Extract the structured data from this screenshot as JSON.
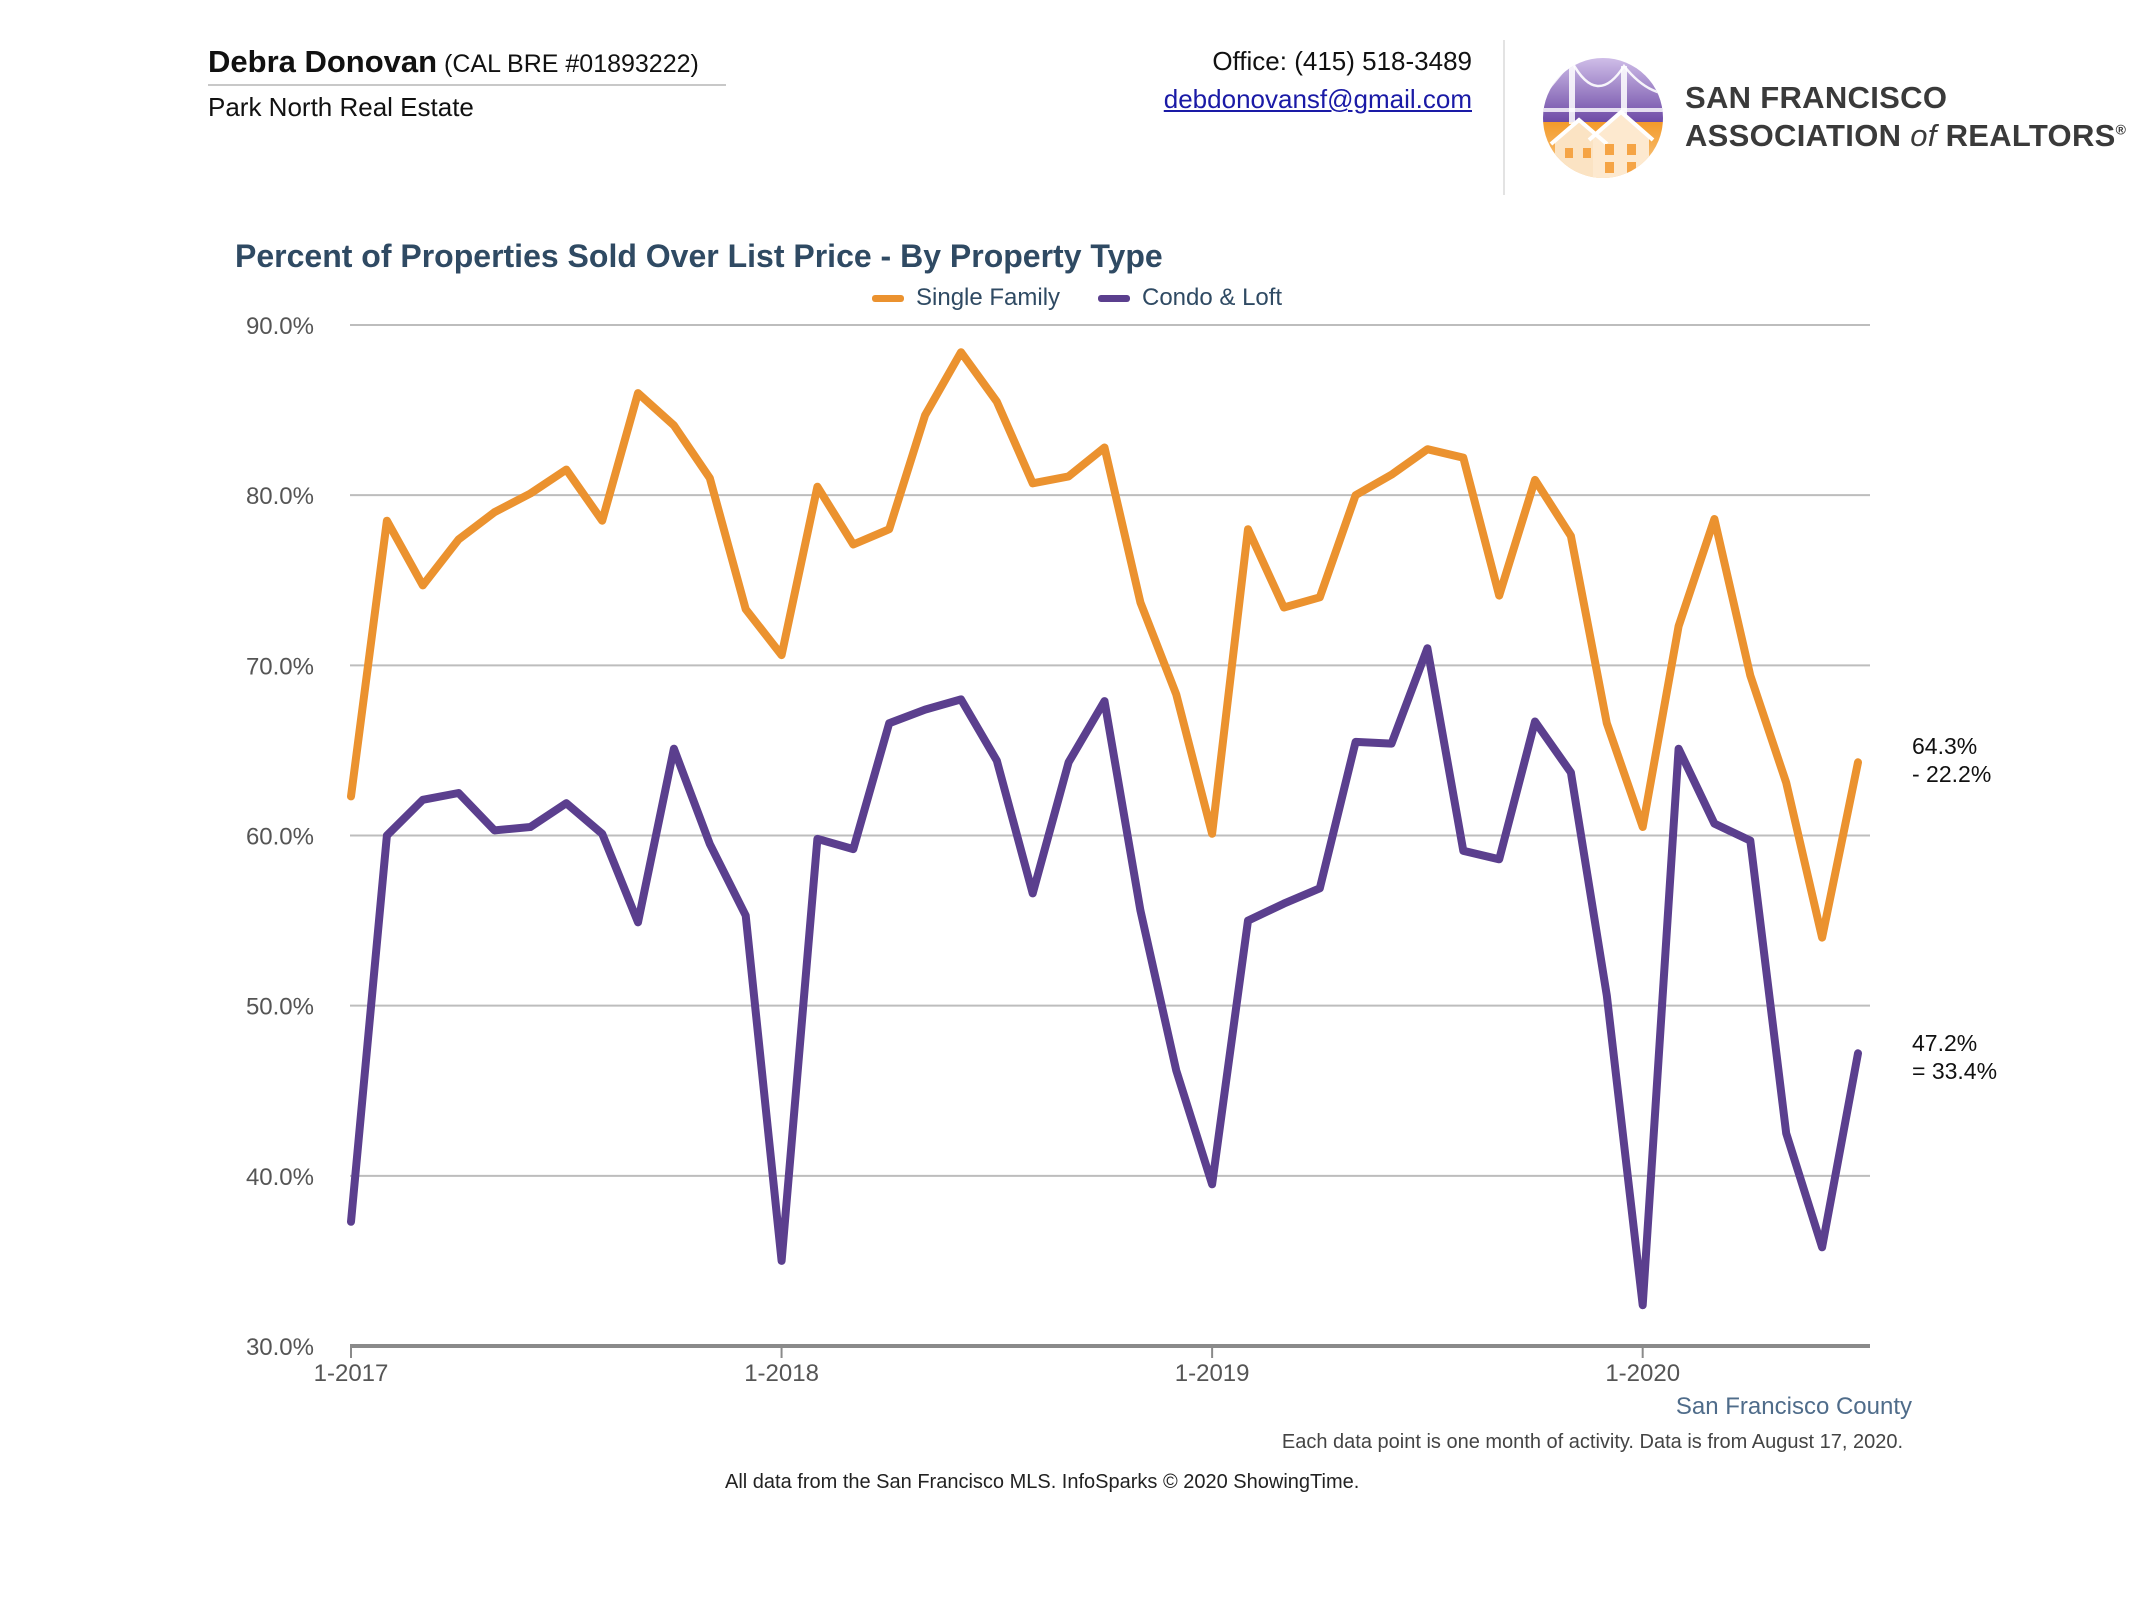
{
  "header": {
    "agent_name": "Debra Donovan",
    "agent_license": " (CAL BRE #01893222)",
    "company": "Park North Real Estate",
    "office_phone": "Office: (415) 518-3489",
    "email": "debdonovansf@gmail.com"
  },
  "logo": {
    "line1": "SAN FRANCISCO",
    "line2_prefix": "ASSOCIATION ",
    "line2_of": "of",
    "line2_suffix": " REALTORS",
    "registered_mark": "®",
    "icon": "golden-gate-house-logo"
  },
  "colors": {
    "single_family": "#EB922F",
    "condo_loft": "#5B3F8E",
    "title": "#2F4A63",
    "grid": "#BDBDBD",
    "axis": "#8A8A8A"
  },
  "chart_data": {
    "type": "line",
    "title": "Percent of Properties Sold Over List Price - By Property Type",
    "xlabel": "",
    "ylabel": "",
    "x_start": "2017-01",
    "x_end": "2020-07",
    "x_ticks": [
      "1-2017",
      "1-2018",
      "1-2019",
      "1-2020"
    ],
    "y_ticks": [
      "30.0%",
      "40.0%",
      "50.0%",
      "60.0%",
      "70.0%",
      "80.0%",
      "90.0%"
    ],
    "ylim": [
      30,
      90
    ],
    "grid": true,
    "legend_position": "top-center",
    "series": [
      {
        "name": "Single Family",
        "color": "#EB922F",
        "end_label": [
          "64.3%",
          "- 22.2%"
        ],
        "values": [
          62.3,
          78.5,
          74.7,
          77.4,
          79.0,
          80.1,
          81.5,
          78.5,
          86.0,
          84.1,
          81.0,
          73.3,
          70.6,
          80.5,
          77.1,
          78.0,
          84.7,
          88.4,
          85.5,
          80.7,
          81.1,
          82.8,
          73.7,
          68.3,
          60.1,
          78.0,
          73.4,
          74.0,
          80.0,
          81.2,
          82.7,
          82.2,
          74.1,
          80.9,
          77.6,
          66.6,
          60.5,
          72.3,
          78.6,
          69.4,
          63.1,
          54.0,
          64.3
        ]
      },
      {
        "name": "Condo & Loft",
        "color": "#5B3F8E",
        "end_label": [
          "47.2%",
          "= 33.4%"
        ],
        "values": [
          37.3,
          60.0,
          62.1,
          62.5,
          60.3,
          60.5,
          61.9,
          60.1,
          54.9,
          65.1,
          59.5,
          55.3,
          35.0,
          59.8,
          59.2,
          66.6,
          67.4,
          68.0,
          64.4,
          56.6,
          64.3,
          67.9,
          55.6,
          46.2,
          39.5,
          55.0,
          56.0,
          56.9,
          65.5,
          65.4,
          71.0,
          59.1,
          58.6,
          66.7,
          63.7,
          50.6,
          32.4,
          65.1,
          60.7,
          59.7,
          42.5,
          35.8,
          47.2
        ]
      }
    ]
  },
  "footer": {
    "region": "San Francisco County",
    "footnote": "Each data point is one month of activity. Data is from August 17, 2020.",
    "source": "All data from the San Francisco MLS. InfoSparks © 2020 ShowingTime."
  }
}
